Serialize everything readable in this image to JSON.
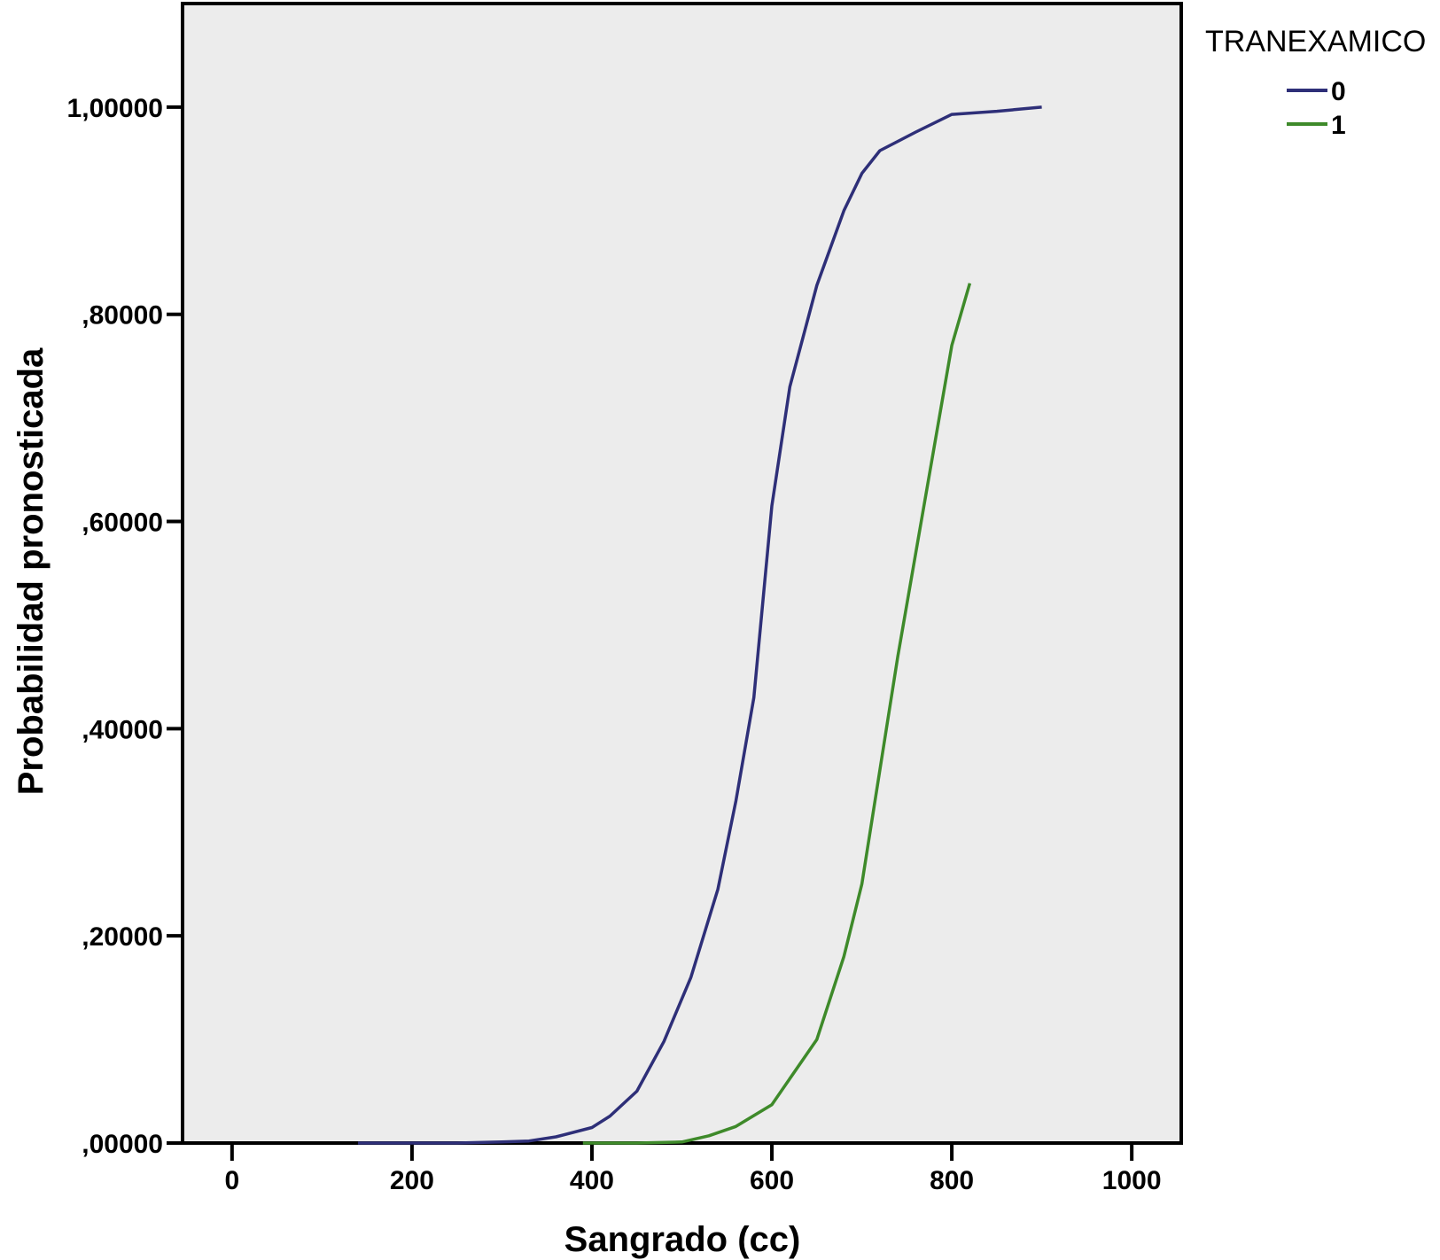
{
  "chart_data": {
    "type": "line",
    "xlabel": "Sangrado (cc)",
    "ylabel": "Probabilidad pronosticada",
    "xlim": [
      -55,
      1055
    ],
    "ylim": [
      0,
      1.1
    ],
    "x_ticks": [
      0,
      200,
      400,
      600,
      800,
      1000
    ],
    "x_tick_labels": [
      "0",
      "200",
      "400",
      "600",
      "800",
      "1000"
    ],
    "y_ticks": [
      0,
      0.2,
      0.4,
      0.6,
      0.8,
      1.0
    ],
    "y_tick_labels": [
      ",00000",
      ",20000",
      ",40000",
      ",60000",
      ",80000",
      "1,00000"
    ],
    "grid": false,
    "plot_background": "#ececec",
    "legend": {
      "title": "TRANEXAMICO",
      "placement": "right"
    },
    "series": [
      {
        "name": "0",
        "color": "#2e2f78",
        "points": [
          [
            140,
            0.0
          ],
          [
            200,
            0.0
          ],
          [
            250,
            0.0
          ],
          [
            300,
            0.001
          ],
          [
            330,
            0.002
          ],
          [
            360,
            0.006
          ],
          [
            400,
            0.015
          ],
          [
            420,
            0.026
          ],
          [
            450,
            0.05
          ],
          [
            480,
            0.098
          ],
          [
            510,
            0.16
          ],
          [
            540,
            0.245
          ],
          [
            560,
            0.33
          ],
          [
            580,
            0.43
          ],
          [
            600,
            0.615
          ],
          [
            620,
            0.73
          ],
          [
            650,
            0.828
          ],
          [
            680,
            0.9
          ],
          [
            700,
            0.936
          ],
          [
            720,
            0.958
          ],
          [
            760,
            0.976
          ],
          [
            800,
            0.993
          ],
          [
            850,
            0.996
          ],
          [
            900,
            1.0
          ]
        ]
      },
      {
        "name": "1",
        "color": "#3e8a2a",
        "points": [
          [
            390,
            0.0
          ],
          [
            450,
            0.0
          ],
          [
            500,
            0.001
          ],
          [
            530,
            0.007
          ],
          [
            560,
            0.016
          ],
          [
            600,
            0.037
          ],
          [
            650,
            0.1
          ],
          [
            680,
            0.18
          ],
          [
            700,
            0.25
          ],
          [
            720,
            0.36
          ],
          [
            740,
            0.47
          ],
          [
            760,
            0.57
          ],
          [
            780,
            0.67
          ],
          [
            800,
            0.77
          ],
          [
            820,
            0.83
          ]
        ]
      }
    ]
  }
}
